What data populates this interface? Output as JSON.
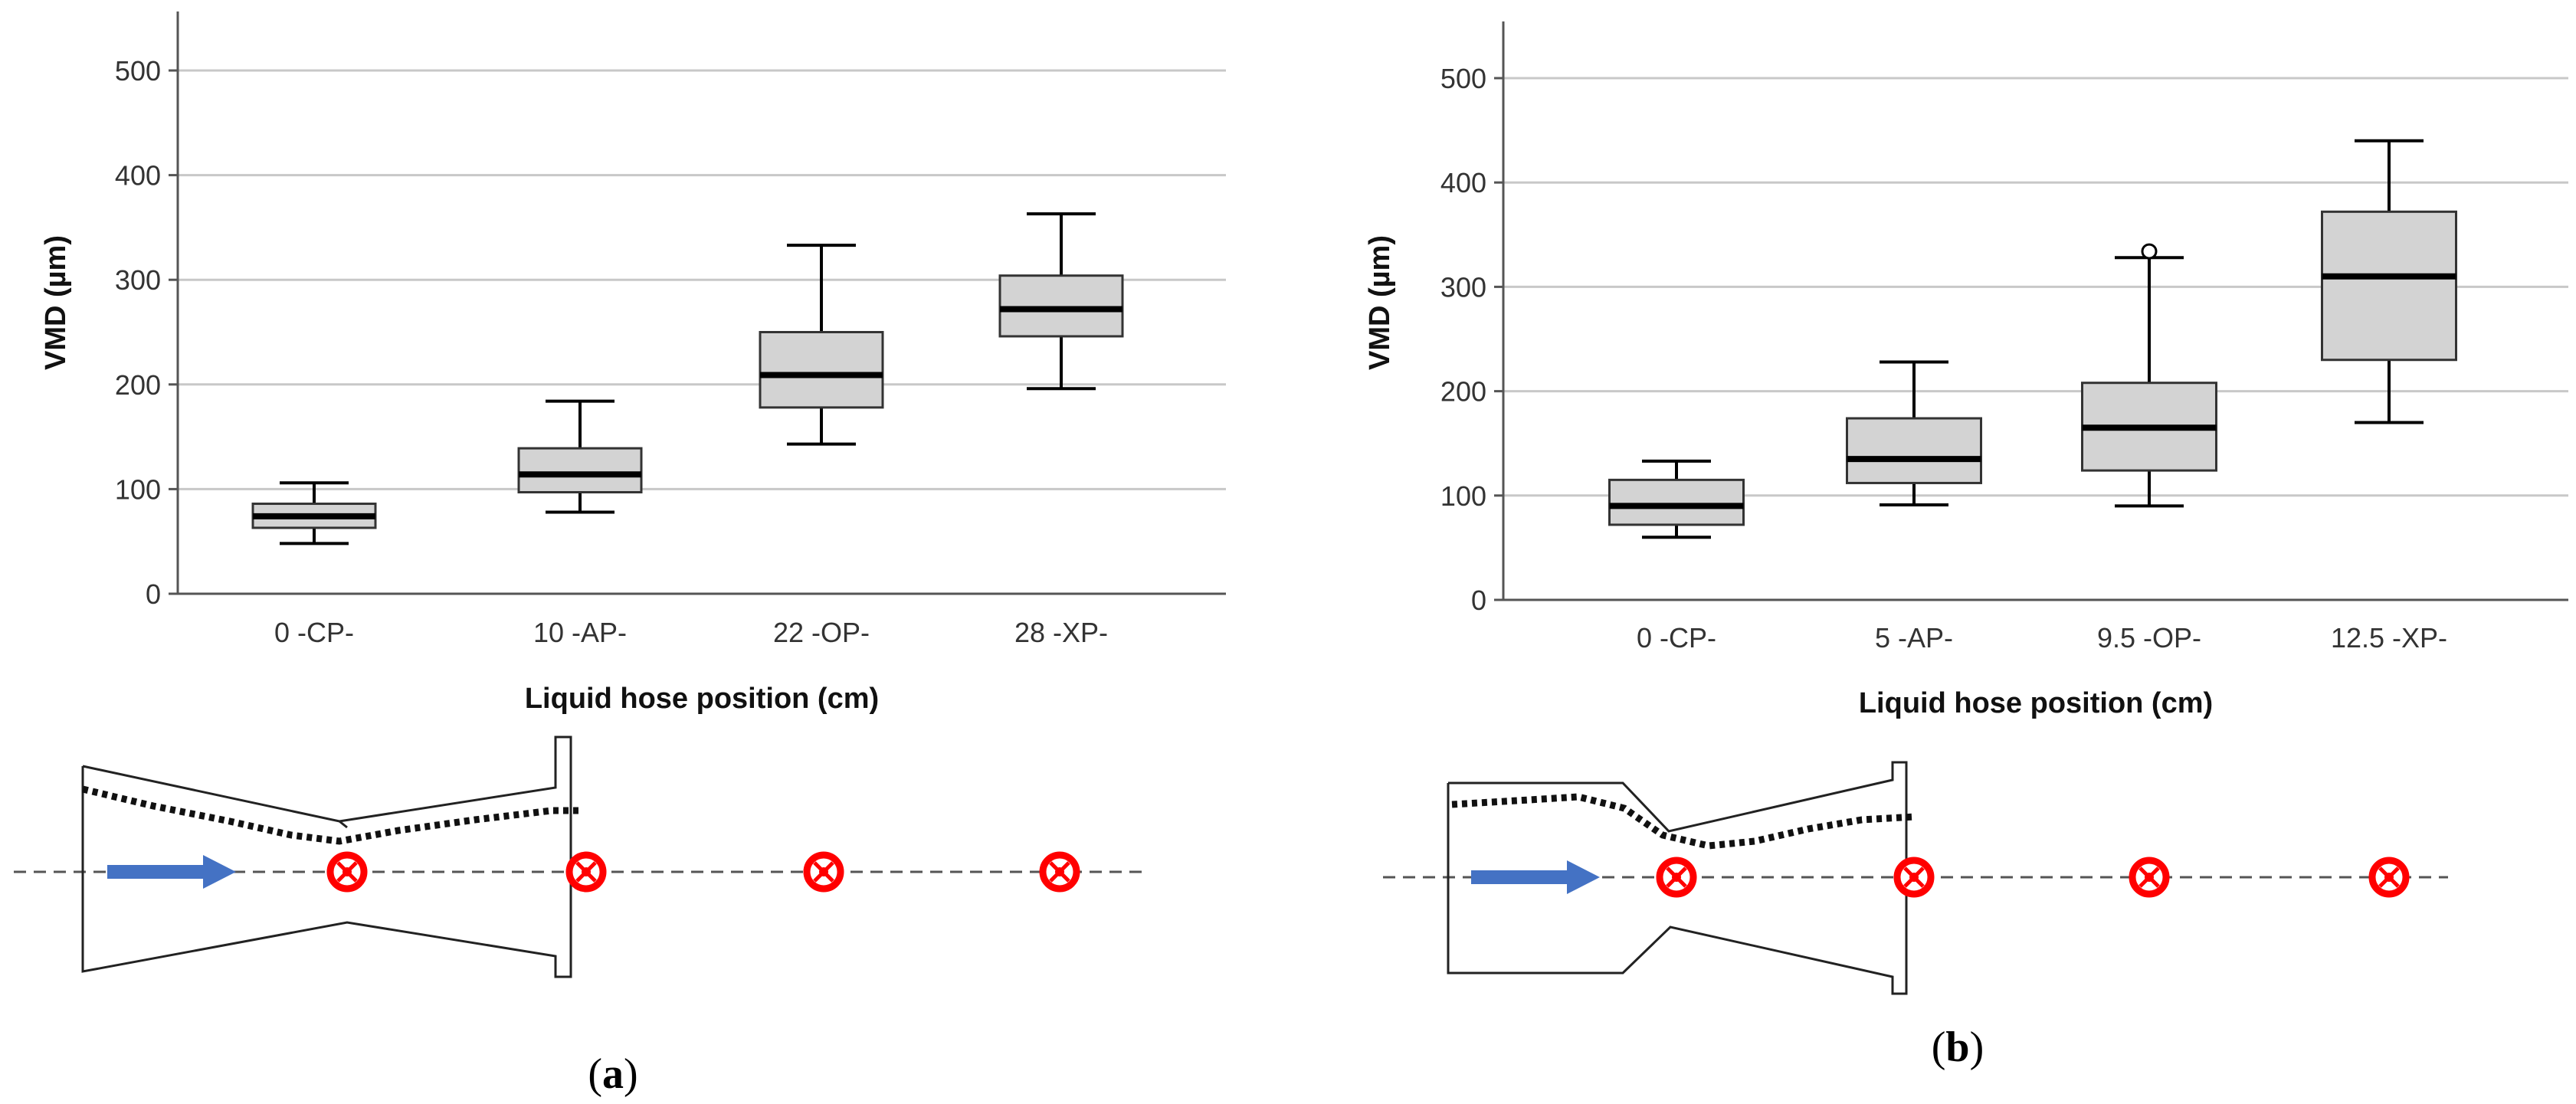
{
  "chart_data": [
    {
      "type": "boxplot",
      "panel": "a",
      "ylabel": "VMD (µm)",
      "xlabel": "Liquid hose position (cm)",
      "ylim": [
        0,
        550
      ],
      "yticks": [
        0,
        100,
        200,
        300,
        400,
        500
      ],
      "grid": true,
      "categories": [
        "0 -CP-",
        "10 -AP-",
        "22 -OP-",
        "28 -XP-"
      ],
      "boxes": [
        {
          "min": 48,
          "q1": 63,
          "median": 74,
          "q3": 86,
          "max": 106,
          "outliers": []
        },
        {
          "min": 78,
          "q1": 97,
          "median": 114,
          "q3": 139,
          "max": 184,
          "outliers": []
        },
        {
          "min": 143,
          "q1": 178,
          "median": 209,
          "q3": 250,
          "max": 333,
          "outliers": []
        },
        {
          "min": 196,
          "q1": 246,
          "median": 272,
          "q3": 304,
          "max": 363,
          "outliers": []
        }
      ]
    },
    {
      "type": "boxplot",
      "panel": "b",
      "ylabel": "VMD (µm)",
      "xlabel": "Liquid hose position (cm)",
      "ylim": [
        0,
        550
      ],
      "yticks": [
        0,
        100,
        200,
        300,
        400,
        500
      ],
      "grid": true,
      "categories": [
        "0 -CP-",
        "5 -AP-",
        "9.5 -OP-",
        "12.5 -XP-"
      ],
      "boxes": [
        {
          "min": 60,
          "q1": 72,
          "median": 90,
          "q3": 115,
          "max": 133,
          "outliers": []
        },
        {
          "min": 91,
          "q1": 112,
          "median": 135,
          "q3": 174,
          "max": 228,
          "outliers": []
        },
        {
          "min": 90,
          "q1": 124,
          "median": 165,
          "q3": 208,
          "max": 328,
          "outliers": [
            334
          ]
        },
        {
          "min": 170,
          "q1": 230,
          "median": 310,
          "q3": 372,
          "max": 440,
          "outliers": []
        }
      ]
    }
  ],
  "panel_labels": {
    "a": {
      "open": "(",
      "letter": "a",
      "close": ")"
    },
    "b": {
      "open": "(",
      "letter": "b",
      "close": ")"
    }
  },
  "colors": {
    "box_fill": "#d3d3d3",
    "grid": "#c8c8c8",
    "flow_arrow": "#4472c4",
    "marker": "#ff0000"
  },
  "nozzle_diagrams": {
    "a": {
      "marker_count": 4,
      "arrow_icon": "flow-arrow-icon",
      "marker_icon": "measurement-point-icon"
    },
    "b": {
      "marker_count": 4,
      "arrow_icon": "flow-arrow-icon",
      "marker_icon": "measurement-point-icon"
    }
  }
}
